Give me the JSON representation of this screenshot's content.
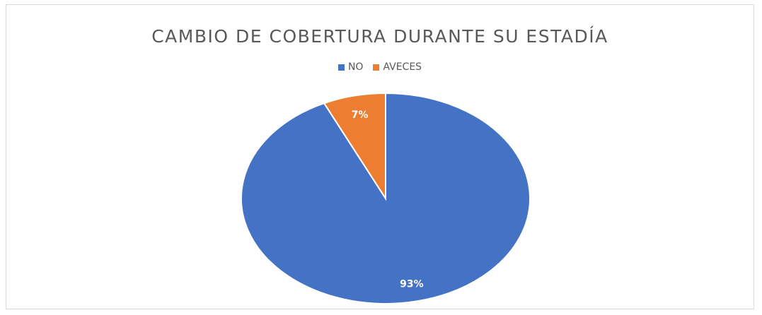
{
  "chart_data": {
    "type": "pie",
    "title": "CAMBIO DE COBERTURA DURANTE SU ESTADÍA",
    "categories": [
      "NO",
      "AVECES"
    ],
    "values": [
      93,
      7
    ],
    "data_labels": [
      "93%",
      "7%"
    ],
    "colors": [
      "#4472c4",
      "#ed7d31"
    ],
    "legend_position": "top"
  }
}
